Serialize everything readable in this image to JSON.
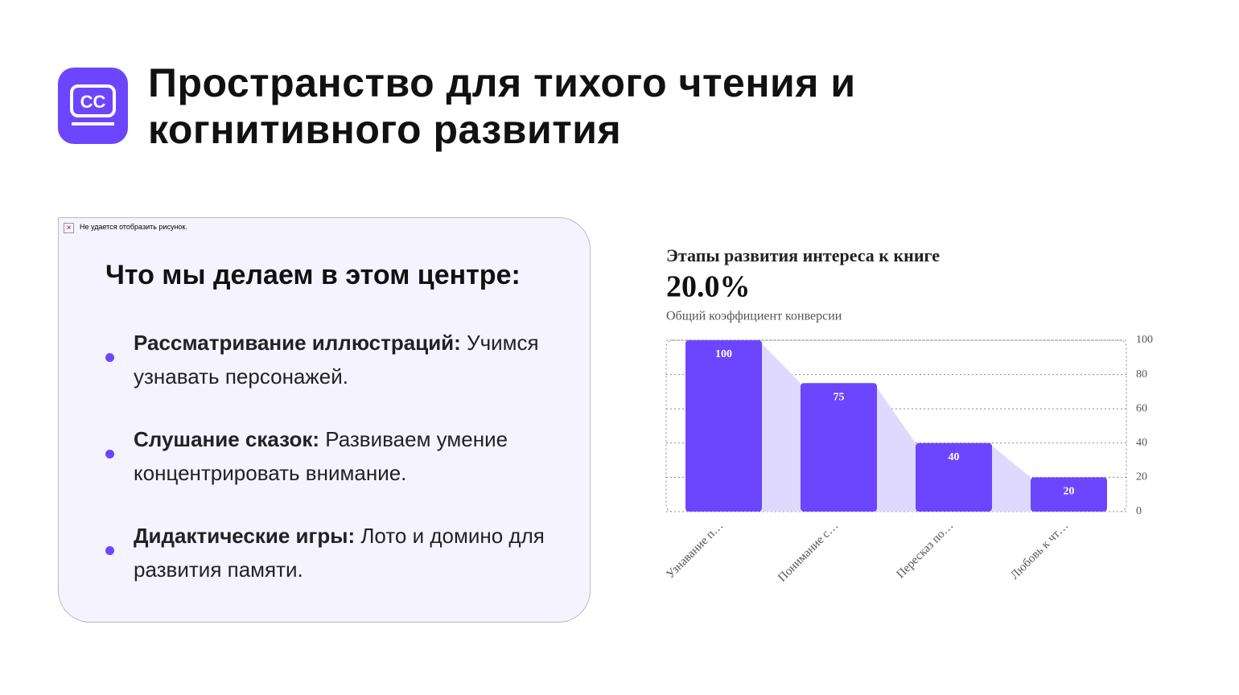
{
  "header": {
    "title_lines": [
      "Пространство для тихого чтения и",
      "когнитивного развития"
    ]
  },
  "card": {
    "broken_image": "Не удается отобразить рисунок.",
    "heading": "Что мы делаем в этом центре:",
    "items": [
      {
        "bold": "Рассматривание иллюстраций:",
        "text": "Учимся узнавать персонажей."
      },
      {
        "bold": "Слушание сказок:",
        "text": "Развиваем умение концентрировать внимание."
      },
      {
        "bold": "Дидактические игры:",
        "text": "Лото и домино для развития памяти."
      }
    ]
  },
  "chart_data": {
    "type": "funnel-bar",
    "title": "Этапы развития интереса к книге",
    "kpi": "20.0%",
    "subtitle": "Общий коэффициент конверсии",
    "categories": [
      "Узнавание п…",
      "Понимание с…",
      "Пересказ по…",
      "Любовь к чт…"
    ],
    "values": [
      100,
      75,
      40,
      20
    ],
    "color": "#6c45ff",
    "area_color": "#e0d9ff",
    "ylim": [
      0,
      100
    ],
    "yticks": [
      0,
      20,
      40,
      60,
      80,
      100
    ],
    "grid": true
  }
}
